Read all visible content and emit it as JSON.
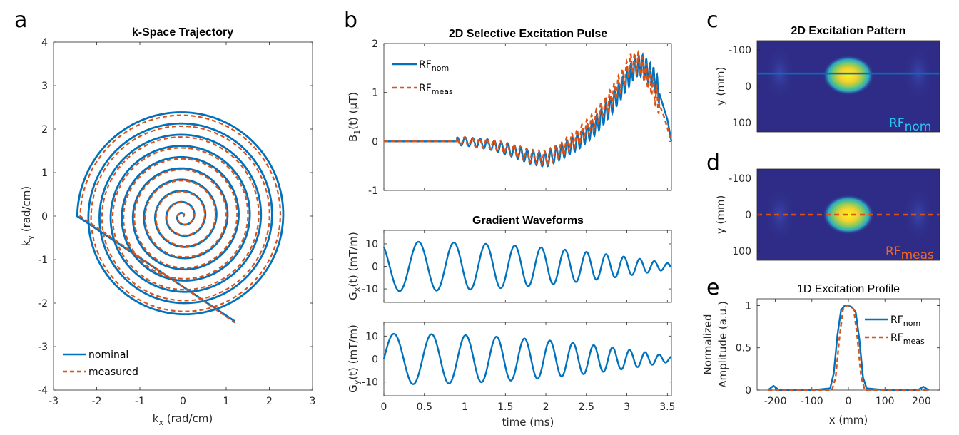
{
  "colors": {
    "nominal": "#0072BD",
    "measured": "#D95319",
    "map_bg": "#2E2C86",
    "rfnom_label": "#29C7F2",
    "rfmeas_label": "#F0662A"
  },
  "panels": {
    "a": {
      "letter": "a",
      "title": "k-Space Trajectory",
      "xlabel_main": "k",
      "xlabel_sub": "x",
      "xlabel_rest": " (rad/cm)",
      "ylabel_main": "k",
      "ylabel_sub": "y",
      "ylabel_rest": " (rad/cm)",
      "legend": [
        "nominal",
        "measured"
      ]
    },
    "b": {
      "letter": "b",
      "title": "2D Selective Excitation Pulse",
      "ylabel_main": "B",
      "ylabel_sub": "1",
      "ylabel_rest": "(t) (µT)",
      "legend_main": [
        "RF",
        "RF"
      ],
      "legend_sub": [
        "nom",
        "meas"
      ],
      "grad_title": "Gradient Waveforms",
      "gx_label_main": "G",
      "gx_label_sub": "x",
      "gx_label_rest": "(t) (mT/m)",
      "gy_label_main": "G",
      "gy_label_sub": "y",
      "gy_label_rest": "(t) (mT/m)",
      "xlabel": "time (ms)"
    },
    "c": {
      "letter": "c",
      "title": "2D Excitation Pattern",
      "ylabel": "y (mm)",
      "tag_main": "RF",
      "tag_sub": "nom"
    },
    "d": {
      "letter": "d",
      "ylabel": "y (mm)",
      "tag_main": "RF",
      "tag_sub": "meas"
    },
    "e": {
      "letter": "e",
      "title": "1D Excitation Profile",
      "ylabel_line1": "Normalized",
      "ylabel_line2": "Amplitude (a.u.)",
      "xlabel": "x (mm)",
      "legend_main": [
        "RF",
        "RF"
      ],
      "legend_sub": [
        "nom",
        "meas"
      ]
    }
  },
  "chart_data": [
    {
      "id": "a",
      "type": "line",
      "title": "k-Space Trajectory",
      "xlabel": "kx (rad/cm)",
      "ylabel": "ky (rad/cm)",
      "xlim": [
        -3,
        3
      ],
      "ylim": [
        -4,
        4
      ],
      "xticks": [
        -3,
        -2,
        -1,
        0,
        1,
        2,
        3
      ],
      "yticks": [
        -4,
        -3,
        -2,
        -1,
        0,
        1,
        2,
        3,
        4
      ],
      "legend_position": "bottom-left",
      "series": [
        {
          "name": "nominal",
          "style": "solid",
          "turns": 9.5,
          "start_radius": 0,
          "end_radius": 2.45,
          "end_point": [
            1.2,
            -2.42
          ]
        },
        {
          "name": "measured",
          "style": "dashed",
          "turns": 9.5,
          "start_radius": 0,
          "end_radius": 2.38,
          "end_point": [
            1.2,
            -2.45
          ]
        }
      ]
    },
    {
      "id": "b_rf",
      "type": "line",
      "title": "2D Selective Excitation Pulse",
      "xlabel": "time (ms)",
      "ylabel": "B1(t) (µT)",
      "xlim": [
        0,
        3.55
      ],
      "ylim": [
        -1,
        2
      ],
      "yticks": [
        -1,
        0,
        1,
        2
      ],
      "legend_position": "top-left",
      "series": [
        {
          "name": "RFnom",
          "style": "solid",
          "x": [
            0.0,
            0.5,
            1.0,
            1.3,
            1.6,
            1.8,
            2.0,
            2.2,
            2.4,
            2.6,
            2.8,
            2.95,
            3.1,
            3.2,
            3.35,
            3.5,
            3.55
          ],
          "y": [
            0.0,
            0.0,
            0.0,
            -0.06,
            -0.2,
            -0.32,
            -0.38,
            -0.2,
            0.0,
            0.3,
            0.72,
            1.12,
            1.52,
            1.55,
            1.25,
            0.45,
            0.0
          ]
        },
        {
          "name": "RFmeas",
          "style": "dashed",
          "x": [
            0.0,
            0.5,
            1.0,
            1.3,
            1.6,
            1.8,
            2.0,
            2.2,
            2.4,
            2.6,
            2.8,
            2.95,
            3.05,
            3.15,
            3.3,
            3.45,
            3.55
          ],
          "y": [
            0.0,
            0.0,
            0.0,
            -0.05,
            -0.18,
            -0.3,
            -0.34,
            -0.15,
            0.1,
            0.42,
            0.88,
            1.28,
            1.58,
            1.62,
            1.18,
            0.55,
            0.0
          ]
        }
      ]
    },
    {
      "id": "b_gx",
      "type": "line",
      "title": "Gradient Waveforms",
      "xlabel": "",
      "ylabel": "Gx(t) (mT/m)",
      "xlim": [
        0,
        3.55
      ],
      "ylim": [
        -16,
        16
      ],
      "yticks": [
        -10,
        0,
        10
      ],
      "series": [
        {
          "name": "Gx",
          "style": "solid",
          "amplitude": 11,
          "period_start_ms": 0.5,
          "period_end_ms": 0.15,
          "phase": "sin",
          "initial_peak": 7
        }
      ]
    },
    {
      "id": "b_gy",
      "type": "line",
      "title": "",
      "xlabel": "time (ms)",
      "ylabel": "Gy(t) (mT/m)",
      "xlim": [
        0,
        3.55
      ],
      "ylim": [
        -16,
        16
      ],
      "yticks": [
        -10,
        0,
        10
      ],
      "xticks": [
        0,
        0.5,
        1,
        1.5,
        2,
        2.5,
        3,
        3.5
      ],
      "series": [
        {
          "name": "Gy",
          "style": "solid",
          "amplitude": 11,
          "period_start_ms": 0.5,
          "period_end_ms": 0.15,
          "phase": "cos"
        }
      ]
    },
    {
      "id": "c",
      "type": "heatmap",
      "title": "2D Excitation Pattern",
      "ylabel": "y (mm)",
      "ylim": [
        -125,
        125
      ],
      "yticks": [
        -100,
        0,
        100
      ],
      "spot_center_y": -30,
      "spot_width_x": 80,
      "spot_height_y": 60,
      "line": {
        "style": "solid",
        "y": -35,
        "color": "#0072BD"
      }
    },
    {
      "id": "d",
      "type": "heatmap",
      "title": "",
      "ylabel": "y (mm)",
      "ylim": [
        -125,
        125
      ],
      "yticks": [
        -100,
        0,
        100
      ],
      "spot_center_y": 0,
      "spot_width_x": 80,
      "spot_height_y": 60,
      "line": {
        "style": "dashed",
        "y": 0,
        "color": "#D95319"
      }
    },
    {
      "id": "e",
      "type": "line",
      "title": "1D Excitation Profile",
      "xlabel": "x (mm)",
      "ylabel": "Normalized Amplitude (a.u.)",
      "xlim": [
        -250,
        250
      ],
      "ylim": [
        0,
        1.08
      ],
      "xticks": [
        -200,
        -100,
        0,
        100,
        200
      ],
      "yticks": [
        0,
        0.5,
        1
      ],
      "legend_position": "top-right",
      "series": [
        {
          "name": "RFnom",
          "style": "solid",
          "x": [
            -220,
            -205,
            -190,
            -100,
            -50,
            -40,
            -30,
            -20,
            -10,
            0,
            10,
            20,
            30,
            40,
            50,
            100,
            190,
            205,
            220
          ],
          "y": [
            0.0,
            0.05,
            0.0,
            0.0,
            0.02,
            0.2,
            0.65,
            0.95,
            1.0,
            1.0,
            0.98,
            0.92,
            0.6,
            0.15,
            0.02,
            0.0,
            0.0,
            0.04,
            0.0
          ]
        },
        {
          "name": "RFmeas",
          "style": "dashed",
          "x": [
            -220,
            -205,
            -190,
            -100,
            -45,
            -35,
            -25,
            -15,
            -5,
            5,
            15,
            25,
            35,
            45,
            100,
            190,
            205,
            220
          ],
          "y": [
            0.0,
            0.0,
            0.0,
            0.0,
            0.0,
            0.15,
            0.6,
            0.95,
            1.0,
            1.0,
            0.95,
            0.6,
            0.15,
            0.0,
            0.0,
            0.0,
            0.0,
            0.0
          ]
        }
      ]
    }
  ]
}
